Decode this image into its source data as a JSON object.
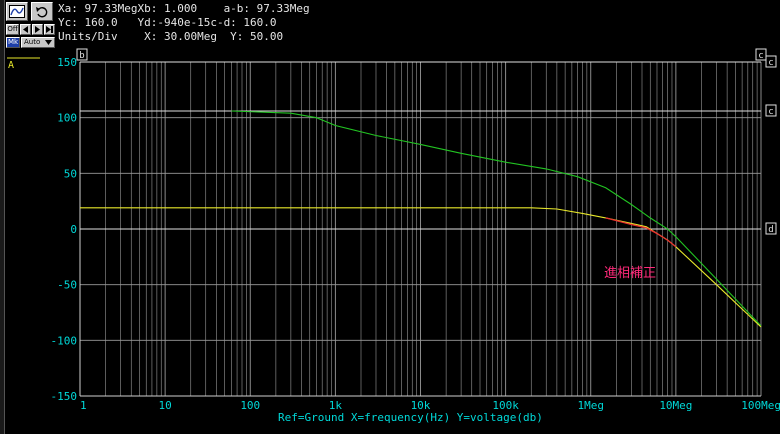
{
  "toolbar": {
    "button_1_icon": "waveform-icon",
    "button_2_icon": "undo-icon",
    "off_label": "Off",
    "arrow_icons": [
      "step-back-icon",
      "play-icon",
      "step-forward-icon"
    ],
    "mk_label": "Mk",
    "auto_label": "Auto"
  },
  "readouts": {
    "line1": "Xa: 97.33MegXb: 1.000    a-b: 97.33Meg",
    "line2": "Yc: 160.0   Yd:-940e-15c-d: 160.0",
    "line3": "Units/Div    X: 30.00Meg  Y: 50.00"
  },
  "cursor_labels": {
    "b": "b",
    "c": "c",
    "d": "d"
  },
  "trace_label": "A",
  "annotation": "進相補正",
  "colors": {
    "background": "#000000",
    "grid": "#9a9a9a",
    "axis_text": "#00d8d8",
    "green": "#22c422",
    "yellow": "#e8e82a",
    "red": "#e83030",
    "annotation": "#ff2a7a"
  },
  "chart_data": {
    "type": "line",
    "x_scale": "log",
    "xlim": [
      1,
      100000000
    ],
    "ylim": [
      -150,
      150
    ],
    "xticks": [
      {
        "value": 1,
        "label": "1"
      },
      {
        "value": 10,
        "label": "10"
      },
      {
        "value": 100,
        "label": "100"
      },
      {
        "value": 1000,
        "label": "1k"
      },
      {
        "value": 10000,
        "label": "10k"
      },
      {
        "value": 100000,
        "label": "100k"
      },
      {
        "value": 1000000,
        "label": "1Meg"
      },
      {
        "value": 10000000,
        "label": "10Meg"
      },
      {
        "value": 100000000,
        "label": "100Meg"
      }
    ],
    "yticks": [
      {
        "value": 150,
        "label": "150"
      },
      {
        "value": 100,
        "label": "100"
      },
      {
        "value": 50,
        "label": "50"
      },
      {
        "value": 0,
        "label": "0"
      },
      {
        "value": -50,
        "label": "-50"
      },
      {
        "value": -100,
        "label": "-100"
      },
      {
        "value": -150,
        "label": "-150"
      }
    ],
    "xlabel": "Ref=Ground  X=frequency(Hz) Y=voltage(db)",
    "cursor_lines": [
      {
        "label": "c",
        "y": 150
      },
      {
        "label": "c",
        "y": 106
      },
      {
        "label": "d",
        "y": 0
      }
    ],
    "series": [
      {
        "color": "green",
        "points": [
          [
            60,
            106
          ],
          [
            300,
            104
          ],
          [
            600,
            100
          ],
          [
            1000,
            93
          ],
          [
            3000,
            84
          ],
          [
            10000,
            76
          ],
          [
            30000,
            68
          ],
          [
            100000,
            60
          ],
          [
            300000,
            54
          ],
          [
            700000,
            47
          ],
          [
            1500000,
            37
          ],
          [
            3000000,
            22
          ],
          [
            5000000,
            10
          ],
          [
            8000000,
            0
          ],
          [
            10000000,
            -7
          ],
          [
            30000000,
            -45
          ],
          [
            100000000,
            -87
          ]
        ]
      },
      {
        "color": "yellow",
        "points": [
          [
            1,
            19
          ],
          [
            100000,
            19
          ],
          [
            200000,
            19
          ],
          [
            400000,
            18
          ],
          [
            800000,
            14
          ],
          [
            1500000,
            10
          ],
          [
            3000000,
            5
          ],
          [
            4500000,
            2
          ],
          [
            6000000,
            -4
          ],
          [
            8000000,
            -10
          ],
          [
            10000000,
            -16
          ],
          [
            30000000,
            -50
          ],
          [
            100000000,
            -88
          ]
        ]
      },
      {
        "color": "red",
        "points": [
          [
            1500000,
            10
          ],
          [
            3000000,
            4
          ],
          [
            4500000,
            1
          ],
          [
            6000000,
            -4
          ],
          [
            8000000,
            -10
          ],
          [
            10000000,
            -16
          ]
        ]
      }
    ]
  }
}
